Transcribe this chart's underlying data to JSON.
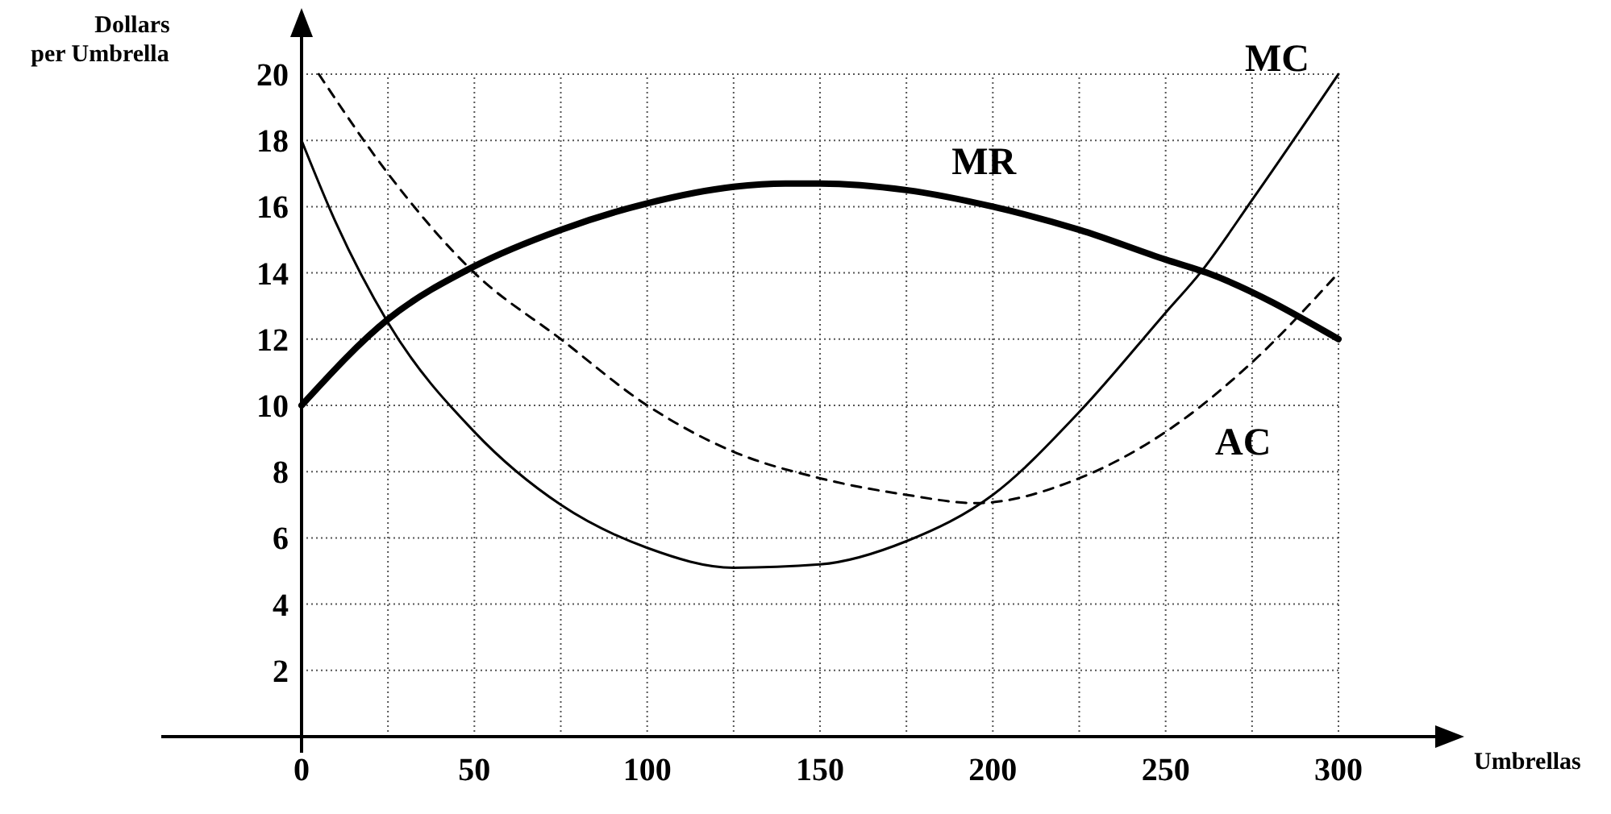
{
  "chart_data": {
    "type": "line",
    "xlabel": "Umbrellas",
    "ylabel": "Dollars\nper Umbrella",
    "xlim": [
      0,
      300
    ],
    "ylim": [
      0,
      20
    ],
    "xticks": [
      0,
      {
        "value": 25,
        "label": null
      },
      50,
      {
        "value": 75,
        "label": null
      },
      100,
      {
        "value": 125,
        "label": null
      },
      150,
      {
        "value": 175,
        "label": null
      },
      200,
      {
        "value": 225,
        "label": null
      },
      250,
      {
        "value": 275,
        "label": null
      },
      300
    ],
    "yticks": [
      2,
      4,
      6,
      8,
      10,
      12,
      14,
      16,
      18,
      20
    ],
    "grid": true,
    "marker": "none",
    "series": [
      {
        "name": "MR",
        "color": "#000000",
        "line_style": "solid",
        "x": [
          0,
          25,
          50,
          75,
          100,
          125,
          140,
          150,
          175,
          200,
          225,
          250,
          262,
          300
        ],
        "values": [
          10,
          12.6,
          14.2,
          15.3,
          16.1,
          16.6,
          16.7,
          16.7,
          16.5,
          16,
          15.3,
          14.4,
          14,
          12
        ]
      },
      {
        "name": "MC",
        "color": "#000000",
        "line_style": "solid",
        "x": [
          0,
          10,
          25,
          50,
          75,
          100,
          125,
          150,
          175,
          200,
          225,
          250,
          260,
          275,
          300
        ],
        "values": [
          18,
          15.5,
          12.5,
          9.2,
          7,
          5.7,
          5.1,
          5.2,
          5.9,
          7.3,
          9.8,
          12.8,
          14,
          16.2,
          20
        ]
      },
      {
        "name": "AC",
        "color": "#000000",
        "line_style": "dashed",
        "x": [
          5,
          25,
          50,
          75,
          100,
          125,
          150,
          175,
          195,
          225,
          250,
          275,
          300
        ],
        "values": [
          20,
          17,
          14,
          12,
          10,
          8.6,
          7.8,
          7.3,
          7.05,
          7.8,
          9.2,
          11.3,
          14
        ]
      }
    ]
  }
}
